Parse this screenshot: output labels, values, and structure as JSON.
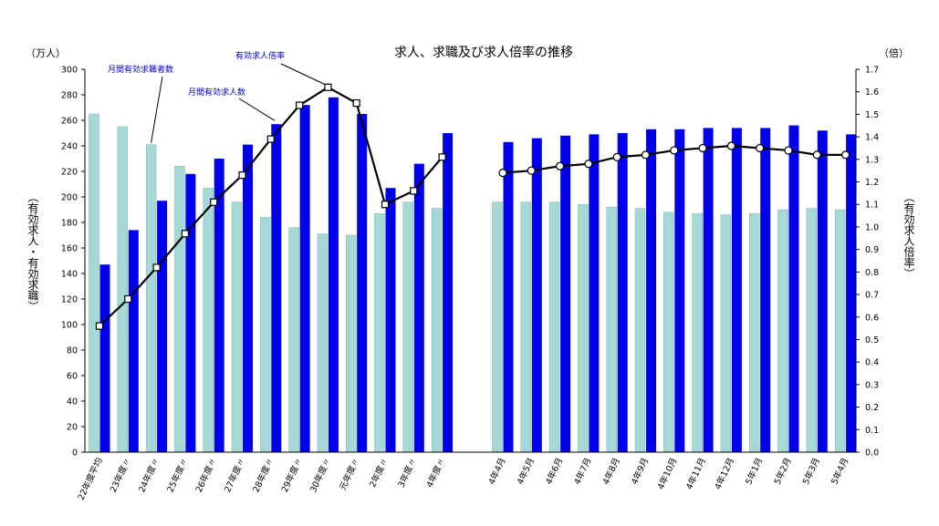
{
  "chart_data": {
    "type": "bar",
    "title": "求人、求職及び求人倍率の推移",
    "left_unit": "（万人）",
    "right_unit": "（倍）",
    "ylabel": "（有効求人・有効求職）",
    "y2label": "（有効求人倍率）",
    "ylim": [
      0,
      300
    ],
    "y2lim": [
      0,
      1.7
    ],
    "yticks": [
      0,
      20,
      40,
      60,
      80,
      100,
      120,
      140,
      160,
      180,
      200,
      220,
      240,
      260,
      280,
      300
    ],
    "y2ticks": [
      "0.0",
      "0.1",
      "0.2",
      "0.3",
      "0.4",
      "0.5",
      "0.6",
      "0.7",
      "0.8",
      "0.9",
      "1.0",
      "1.1",
      "1.2",
      "1.3",
      "1.4",
      "1.5",
      "1.6",
      "1.7"
    ],
    "categories": [
      "22年度平均",
      "23年度〃",
      "24年度〃",
      "25年度〃",
      "26年度〃",
      "27年度〃",
      "28年度〃",
      "29年度〃",
      "30年度〃",
      "元年度〃",
      "2年度〃",
      "3年度〃",
      "4年度〃",
      "4年4月",
      "4年5月",
      "4年6月",
      "4年7月",
      "4年8月",
      "4年9月",
      "4年10月",
      "4年11月",
      "4年12月",
      "5年1月",
      "5年2月",
      "5年3月",
      "5年4月"
    ],
    "series": [
      {
        "name": "月間有効求職者数",
        "type": "bar",
        "color": "#a6d8d5",
        "values": [
          265,
          255,
          241,
          224,
          207,
          196,
          184,
          176,
          171,
          170,
          187,
          196,
          191,
          196,
          196,
          196,
          194,
          192,
          191,
          188,
          187,
          186,
          187,
          190,
          191,
          190
        ]
      },
      {
        "name": "月間有効求人数",
        "type": "bar",
        "color": "#0000ee",
        "values": [
          147,
          174,
          197,
          218,
          230,
          241,
          257,
          272,
          278,
          265,
          207,
          226,
          250,
          243,
          246,
          248,
          249,
          250,
          253,
          253,
          254,
          254,
          254,
          256,
          252,
          249
        ]
      },
      {
        "name": "有効求人倍率",
        "type": "line",
        "axis": "right",
        "color": "#000000",
        "values": [
          0.56,
          0.68,
          0.82,
          0.97,
          1.11,
          1.23,
          1.39,
          1.54,
          1.62,
          1.55,
          1.1,
          1.16,
          1.31,
          1.24,
          1.25,
          1.27,
          1.28,
          1.31,
          1.32,
          1.34,
          1.35,
          1.36,
          1.35,
          1.34,
          1.32,
          1.32
        ]
      }
    ],
    "annotations": [
      "月間有効求職者数",
      "月間有効求人数",
      "有効求人倍率"
    ],
    "legend": "none",
    "grid": false
  }
}
